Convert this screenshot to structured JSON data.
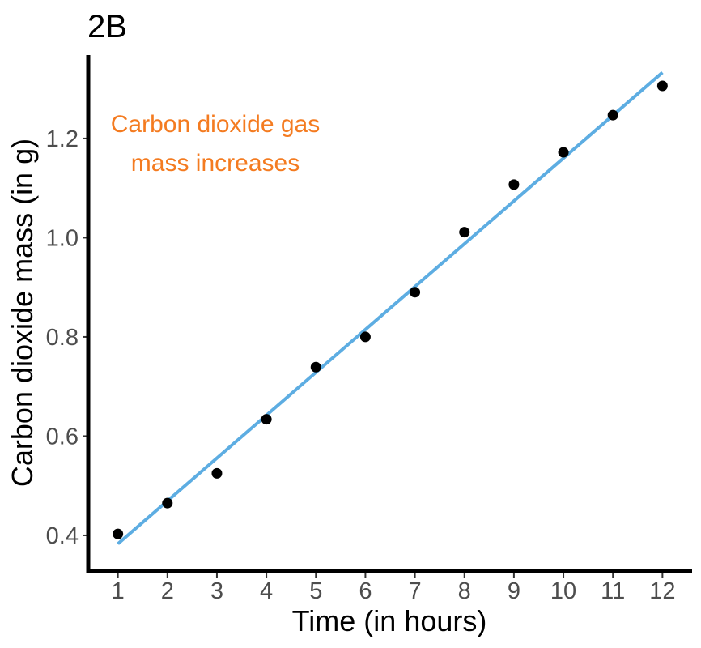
{
  "chart_data": {
    "type": "scatter",
    "title": "2B",
    "xlabel": "Time (in hours)",
    "ylabel": "Carbon dioxide mass (in g)",
    "x_ticks": [
      1,
      2,
      3,
      4,
      5,
      6,
      7,
      8,
      9,
      10,
      11,
      12
    ],
    "y_ticks": [
      0.4,
      0.6,
      0.8,
      1.0,
      1.2
    ],
    "xlim": [
      0.45,
      12.55
    ],
    "ylim": [
      0.333,
      1.368
    ],
    "grid": false,
    "annotation": [
      "Carbon dioxide gas",
      "mass increases"
    ],
    "series": [
      {
        "x": [
          1,
          2,
          3,
          4,
          5,
          6,
          7,
          8,
          9,
          10,
          11,
          12
        ],
        "y": [
          0.403,
          0.465,
          0.525,
          0.634,
          0.739,
          0.8,
          0.89,
          1.011,
          1.107,
          1.172,
          1.247,
          1.306
        ],
        "color": "#000000"
      }
    ],
    "trend_line": {
      "x": [
        1,
        12
      ],
      "y": [
        0.383,
        1.333
      ],
      "color": "#5dade2"
    }
  }
}
